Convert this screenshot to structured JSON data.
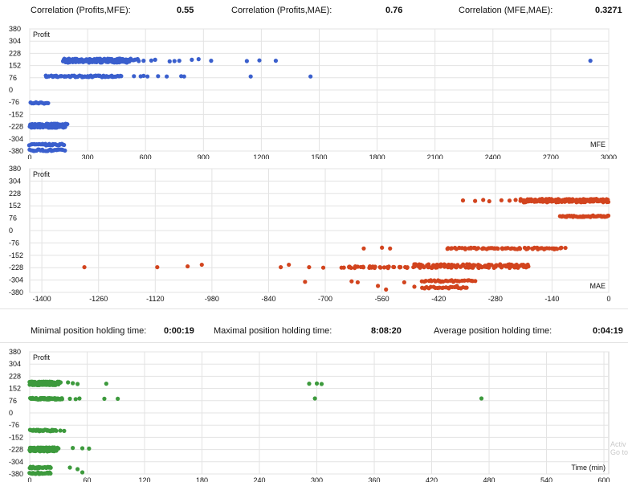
{
  "correlation_stats": [
    {
      "label": "Correlation (Profits,MFE):",
      "value": "0.55"
    },
    {
      "label": "Correlation (Profits,MAE):",
      "value": "0.76"
    },
    {
      "label": "Correlation (MFE,MAE):",
      "value": "0.3271"
    }
  ],
  "holding_stats": [
    {
      "label": "Minimal position holding time:",
      "value": "0:00:19"
    },
    {
      "label": "Maximal position holding time:",
      "value": "8:08:20"
    },
    {
      "label": "Average position holding time:",
      "value": "0:04:19"
    }
  ],
  "watermark": [
    "Activ",
    "Go to"
  ],
  "chart_data": [
    {
      "type": "scatter",
      "ylabel": "Profit",
      "xlabel": "MFE",
      "color": "#3a5fcd",
      "xlim": [
        0,
        3000
      ],
      "ylim": [
        -380,
        380
      ],
      "xticks": [
        0,
        300,
        600,
        900,
        1200,
        1500,
        1800,
        2100,
        2400,
        2700,
        3000
      ],
      "yticks": [
        380,
        304,
        228,
        152,
        76,
        0,
        -76,
        -152,
        -228,
        -304,
        -380
      ],
      "clusters": [
        {
          "x_from": 175,
          "x_to": 560,
          "y": 190,
          "count": 60
        },
        {
          "x_from": 175,
          "x_to": 520,
          "y": 175,
          "count": 50
        },
        {
          "x_from": 80,
          "x_to": 470,
          "y": 85,
          "count": 70
        },
        {
          "x_from": 5,
          "x_to": 95,
          "y": -80,
          "count": 14
        },
        {
          "x_from": 0,
          "x_to": 195,
          "y": -215,
          "count": 40
        },
        {
          "x_from": 0,
          "x_to": 185,
          "y": -230,
          "count": 36
        },
        {
          "x_from": 0,
          "x_to": 180,
          "y": -340,
          "count": 26
        },
        {
          "x_from": 0,
          "x_to": 180,
          "y": -375,
          "count": 26
        }
      ],
      "points": [
        [
          565,
          180
        ],
        [
          590,
          182
        ],
        [
          630,
          183
        ],
        [
          650,
          188
        ],
        [
          725,
          178
        ],
        [
          750,
          180
        ],
        [
          775,
          182
        ],
        [
          840,
          188
        ],
        [
          875,
          192
        ],
        [
          940,
          182
        ],
        [
          1125,
          180
        ],
        [
          1190,
          184
        ],
        [
          1275,
          182
        ],
        [
          2905,
          182
        ],
        [
          470,
          88
        ],
        [
          540,
          86
        ],
        [
          575,
          85
        ],
        [
          590,
          88
        ],
        [
          610,
          84
        ],
        [
          665,
          86
        ],
        [
          710,
          84
        ],
        [
          785,
          86
        ],
        [
          800,
          84
        ],
        [
          1145,
          84
        ],
        [
          1455,
          84
        ]
      ]
    },
    {
      "type": "scatter",
      "ylabel": "Profit",
      "xlabel": "MAE",
      "color": "#d2441e",
      "xlim": [
        -1430,
        0
      ],
      "ylim": [
        -380,
        380
      ],
      "xticks": [
        -1400,
        -1260,
        -1120,
        -980,
        -840,
        -700,
        -560,
        -420,
        -280,
        -140,
        0
      ],
      "yticks": [
        380,
        304,
        228,
        152,
        76,
        0,
        -76,
        -152,
        -228,
        -304,
        -380
      ],
      "clusters": [
        {
          "x_from": -215,
          "x_to": 0,
          "y": 190,
          "count": 60
        },
        {
          "x_from": -215,
          "x_to": 0,
          "y": 178,
          "count": 50
        },
        {
          "x_from": -120,
          "x_to": 0,
          "y": 88,
          "count": 45
        },
        {
          "x_from": -400,
          "x_to": -110,
          "y": -110,
          "count": 70
        },
        {
          "x_from": -480,
          "x_to": -200,
          "y": -212,
          "count": 60
        },
        {
          "x_from": -650,
          "x_to": -200,
          "y": -225,
          "count": 75
        },
        {
          "x_from": -460,
          "x_to": -330,
          "y": -310,
          "count": 28
        },
        {
          "x_from": -460,
          "x_to": -350,
          "y": -350,
          "count": 22
        }
      ],
      "points": [
        [
          -360,
          185
        ],
        [
          -330,
          182
        ],
        [
          -310,
          188
        ],
        [
          -295,
          180
        ],
        [
          -265,
          186
        ],
        [
          -245,
          184
        ],
        [
          -230,
          188
        ],
        [
          -1295,
          -225
        ],
        [
          -1115,
          -225
        ],
        [
          -1040,
          -220
        ],
        [
          -1005,
          -210
        ],
        [
          -810,
          -225
        ],
        [
          -790,
          -210
        ],
        [
          -740,
          -225
        ],
        [
          -660,
          -228
        ],
        [
          -640,
          -222
        ],
        [
          -620,
          -222
        ],
        [
          -590,
          -220
        ],
        [
          -565,
          -225
        ],
        [
          -545,
          -230
        ],
        [
          -705,
          -228
        ],
        [
          -605,
          -110
        ],
        [
          -560,
          -105
        ],
        [
          -540,
          -110
        ],
        [
          -750,
          -315
        ],
        [
          -635,
          -312
        ],
        [
          -620,
          -318
        ],
        [
          -570,
          -340
        ],
        [
          -550,
          -362
        ],
        [
          -505,
          -318
        ],
        [
          -480,
          -345
        ],
        [
          -455,
          -355
        ],
        [
          -415,
          -315
        ],
        [
          -395,
          -355
        ],
        [
          -420,
          -310
        ],
        [
          -375,
          -340
        ]
      ]
    },
    {
      "type": "scatter",
      "ylabel": "Profit",
      "xlabel": "Time (min)",
      "color": "#3d9a3d",
      "xlim": [
        0,
        605
      ],
      "ylim": [
        -380,
        380
      ],
      "xticks": [
        0,
        60,
        120,
        180,
        240,
        300,
        360,
        420,
        480,
        540,
        600
      ],
      "yticks": [
        380,
        304,
        228,
        152,
        76,
        0,
        -76,
        -152,
        -228,
        -304,
        -380
      ],
      "clusters": [
        {
          "x_from": 0,
          "x_to": 32,
          "y": 190,
          "count": 50
        },
        {
          "x_from": 0,
          "x_to": 30,
          "y": 178,
          "count": 40
        },
        {
          "x_from": 0,
          "x_to": 34,
          "y": 88,
          "count": 60
        },
        {
          "x_from": 0,
          "x_to": 28,
          "y": -110,
          "count": 32
        },
        {
          "x_from": 0,
          "x_to": 30,
          "y": -220,
          "count": 40
        },
        {
          "x_from": 0,
          "x_to": 28,
          "y": -235,
          "count": 32
        },
        {
          "x_from": 0,
          "x_to": 22,
          "y": -340,
          "count": 26
        },
        {
          "x_from": 0,
          "x_to": 22,
          "y": -375,
          "count": 26
        }
      ],
      "points": [
        [
          40,
          190
        ],
        [
          45,
          185
        ],
        [
          50,
          180
        ],
        [
          80,
          182
        ],
        [
          42,
          88
        ],
        [
          48,
          86
        ],
        [
          52,
          90
        ],
        [
          78,
          88
        ],
        [
          92,
          88
        ],
        [
          32,
          -110
        ],
        [
          36,
          -112
        ],
        [
          45,
          -218
        ],
        [
          55,
          -220
        ],
        [
          62,
          -222
        ],
        [
          42,
          -340
        ],
        [
          50,
          -350
        ],
        [
          55,
          -370
        ],
        [
          292,
          182
        ],
        [
          300,
          183
        ],
        [
          305,
          180
        ],
        [
          298,
          90
        ],
        [
          472,
          90
        ]
      ]
    }
  ]
}
